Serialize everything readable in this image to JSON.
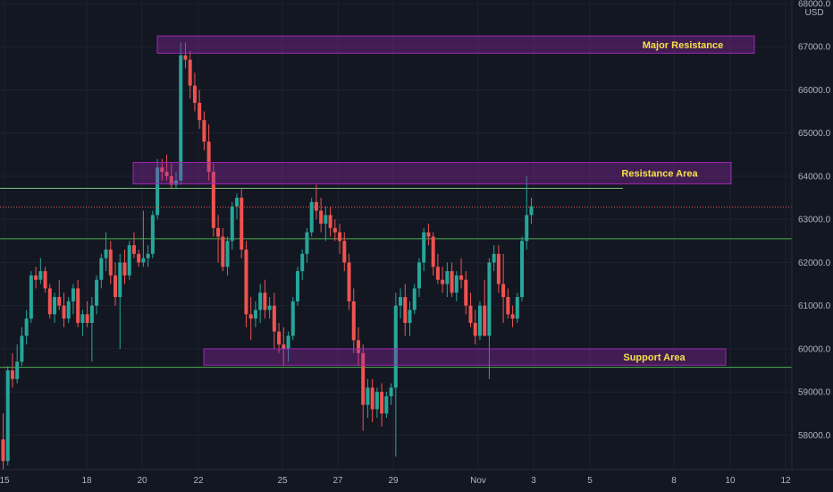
{
  "chart_data": {
    "type": "candlestick",
    "title": "",
    "currency": "USD",
    "price_axis": {
      "range": [
        57200,
        68000
      ],
      "tick_labels": [
        "58000.0",
        "59000.0",
        "60000.0",
        "61000.0",
        "62000.0",
        "63000.0",
        "64000.0",
        "65000.0",
        "66000.0",
        "67000.0",
        "68000.0"
      ],
      "tick_values": [
        58000,
        59000,
        60000,
        61000,
        62000,
        63000,
        64000,
        65000,
        66000,
        67000,
        68000
      ]
    },
    "time_axis": {
      "labels": [
        "15",
        "18",
        "20",
        "22",
        "25",
        "27",
        "29",
        "Nov",
        "3",
        "5",
        "8",
        "10",
        "12"
      ]
    },
    "last_price": "63287.2",
    "last_price_value": 63287.2,
    "zones": [
      {
        "label": "Major Resistance",
        "low": 66850,
        "high": 67250
      },
      {
        "label": "Resistance Area",
        "low": 63820,
        "high": 64320
      },
      {
        "label": "Support Area",
        "low": 59620,
        "high": 60000
      }
    ],
    "horizontal_lines": [
      {
        "price": 63720,
        "color": "#7ec27e"
      },
      {
        "price": 62550,
        "color": "#4caf50"
      },
      {
        "price": 59570,
        "color": "#4caf50"
      }
    ],
    "candles": [
      [
        57900,
        58500,
        57200,
        57400
      ],
      [
        57400,
        59600,
        57300,
        59500
      ],
      [
        59500,
        59900,
        59100,
        59300
      ],
      [
        59300,
        60100,
        59200,
        59700
      ],
      [
        59700,
        60500,
        59600,
        60300
      ],
      [
        60300,
        60900,
        60100,
        60700
      ],
      [
        60700,
        61800,
        60600,
        61700
      ],
      [
        61700,
        61900,
        61400,
        61600
      ],
      [
        61600,
        62100,
        61500,
        61800
      ],
      [
        61800,
        61900,
        61300,
        61400
      ],
      [
        61400,
        61500,
        60700,
        60800
      ],
      [
        60800,
        61300,
        60600,
        61200
      ],
      [
        61200,
        61600,
        60900,
        61000
      ],
      [
        61000,
        61300,
        60500,
        60700
      ],
      [
        60700,
        61200,
        60600,
        61100
      ],
      [
        61100,
        61500,
        60800,
        61400
      ],
      [
        61400,
        61600,
        60500,
        60600
      ],
      [
        60600,
        60900,
        60300,
        60800
      ],
      [
        60800,
        61100,
        60500,
        60600
      ],
      [
        60600,
        61200,
        59700,
        61000
      ],
      [
        61000,
        61700,
        60800,
        61600
      ],
      [
        61600,
        62200,
        61400,
        62100
      ],
      [
        62100,
        62700,
        61800,
        62300
      ],
      [
        62300,
        62500,
        61500,
        61700
      ],
      [
        61700,
        62000,
        61000,
        61200
      ],
      [
        61200,
        62200,
        60000,
        62000
      ],
      [
        62000,
        62300,
        61500,
        61700
      ],
      [
        61700,
        62500,
        61600,
        62400
      ],
      [
        62400,
        62700,
        62100,
        62200
      ],
      [
        62200,
        62300,
        61900,
        62000
      ],
      [
        62000,
        63200,
        61900,
        62100
      ],
      [
        62100,
        62400,
        61900,
        62200
      ],
      [
        62200,
        63200,
        62100,
        63100
      ],
      [
        63100,
        64400,
        63000,
        64200
      ],
      [
        64200,
        64400,
        63900,
        64100
      ],
      [
        64100,
        64500,
        63900,
        64000
      ],
      [
        64000,
        64300,
        63700,
        63800
      ],
      [
        63800,
        64100,
        63700,
        63900
      ],
      [
        63900,
        67100,
        63800,
        66800
      ],
      [
        66800,
        67100,
        66500,
        66700
      ],
      [
        66700,
        66900,
        65800,
        66100
      ],
      [
        66100,
        66400,
        65500,
        65700
      ],
      [
        65700,
        66000,
        65100,
        65300
      ],
      [
        65300,
        65500,
        64600,
        64800
      ],
      [
        64800,
        65200,
        63900,
        64100
      ],
      [
        64100,
        64300,
        62600,
        62800
      ],
      [
        62800,
        63100,
        62000,
        62600
      ],
      [
        62600,
        62800,
        61800,
        61900
      ],
      [
        61900,
        62600,
        61700,
        62500
      ],
      [
        62500,
        63400,
        62300,
        63300
      ],
      [
        63300,
        63600,
        63000,
        63500
      ],
      [
        63500,
        63700,
        62100,
        62300
      ],
      [
        62300,
        62500,
        60500,
        60800
      ],
      [
        60800,
        61200,
        60200,
        60700
      ],
      [
        60700,
        61100,
        60500,
        60900
      ],
      [
        60900,
        61500,
        60600,
        61300
      ],
      [
        61300,
        61600,
        60700,
        60900
      ],
      [
        60900,
        61200,
        60700,
        61000
      ],
      [
        61000,
        61300,
        60000,
        60400
      ],
      [
        60400,
        60600,
        59900,
        60100
      ],
      [
        60100,
        60500,
        59600,
        60000
      ],
      [
        60000,
        60400,
        59700,
        60300
      ],
      [
        60300,
        61200,
        60200,
        61100
      ],
      [
        61100,
        61900,
        61000,
        61800
      ],
      [
        61800,
        62300,
        61600,
        62200
      ],
      [
        62200,
        62800,
        62000,
        62700
      ],
      [
        62700,
        63500,
        62600,
        63400
      ],
      [
        63400,
        63800,
        63000,
        63200
      ],
      [
        63200,
        63500,
        62700,
        62900
      ],
      [
        62900,
        63300,
        62500,
        63100
      ],
      [
        63100,
        63300,
        62600,
        62800
      ],
      [
        62800,
        63000,
        62500,
        62700
      ],
      [
        62700,
        62900,
        62200,
        62500
      ],
      [
        62500,
        62700,
        61800,
        62000
      ],
      [
        62000,
        62200,
        60900,
        61100
      ],
      [
        61100,
        61400,
        59900,
        60200
      ],
      [
        60200,
        60500,
        59600,
        59900
      ],
      [
        59900,
        60100,
        58100,
        58700
      ],
      [
        58700,
        59300,
        58400,
        59100
      ],
      [
        59100,
        59300,
        58300,
        58600
      ],
      [
        58600,
        59100,
        58400,
        59000
      ],
      [
        59000,
        59200,
        58200,
        58500
      ],
      [
        58500,
        59000,
        58400,
        58900
      ],
      [
        58900,
        59200,
        58700,
        59100
      ],
      [
        59100,
        61300,
        57500,
        61000
      ],
      [
        61000,
        61400,
        60700,
        61200
      ],
      [
        61200,
        61500,
        60300,
        60600
      ],
      [
        60600,
        61100,
        60300,
        60900
      ],
      [
        60900,
        61500,
        60800,
        61400
      ],
      [
        61400,
        62100,
        61200,
        62000
      ],
      [
        62000,
        62800,
        61800,
        62700
      ],
      [
        62700,
        62900,
        62400,
        62600
      ],
      [
        62600,
        62700,
        61700,
        61900
      ],
      [
        61900,
        62200,
        61500,
        61600
      ],
      [
        61600,
        61900,
        61300,
        61500
      ],
      [
        61500,
        62000,
        61200,
        61800
      ],
      [
        61800,
        62000,
        61200,
        61300
      ],
      [
        61300,
        61800,
        61100,
        61700
      ],
      [
        61700,
        62100,
        61400,
        61600
      ],
      [
        61600,
        61800,
        60800,
        61000
      ],
      [
        61000,
        61300,
        60500,
        60600
      ],
      [
        60600,
        60900,
        60100,
        60300
      ],
      [
        60300,
        61100,
        60200,
        61000
      ],
      [
        61000,
        61600,
        60300,
        60300
      ],
      [
        60300,
        62100,
        59300,
        62000
      ],
      [
        62000,
        62400,
        61800,
        62200
      ],
      [
        62200,
        62400,
        61300,
        61500
      ],
      [
        61500,
        62200,
        60600,
        61200
      ],
      [
        61200,
        61400,
        60700,
        60800
      ],
      [
        60800,
        61000,
        60500,
        60700
      ],
      [
        60700,
        61300,
        60600,
        61200
      ],
      [
        61200,
        62600,
        61100,
        62500
      ],
      [
        62500,
        64000,
        62300,
        63100
      ],
      [
        63100,
        63500,
        62900,
        63300
      ]
    ]
  }
}
